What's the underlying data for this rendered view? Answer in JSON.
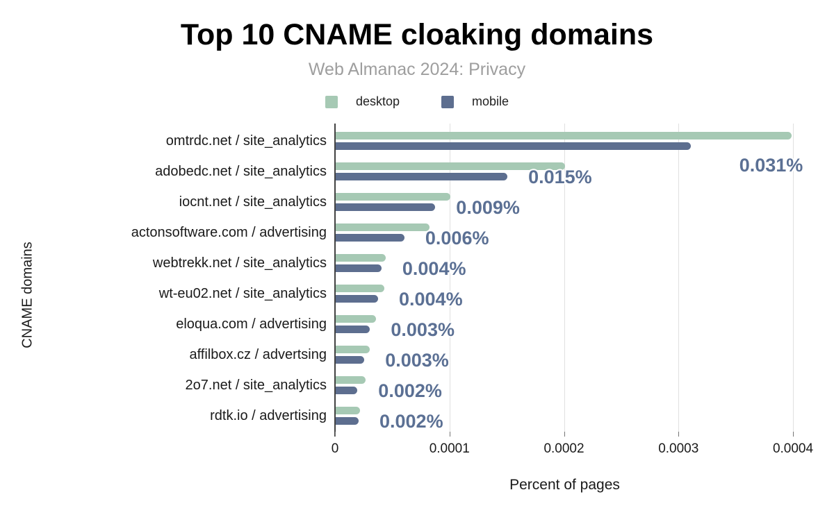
{
  "header": {
    "title": "Top 10 CNAME cloaking domains",
    "subtitle": "Web Almanac 2024: Privacy"
  },
  "legend": {
    "items": [
      {
        "label": "desktop",
        "color": "#a6c9b4"
      },
      {
        "label": "mobile",
        "color": "#5d6e8f"
      }
    ]
  },
  "chart_data": {
    "type": "bar",
    "orientation": "horizontal",
    "title": "Top 10 CNAME cloaking domains",
    "subtitle": "Web Almanac 2024: Privacy",
    "xlabel": "Percent of pages",
    "ylabel": "CNAME domains",
    "xlim": [
      0,
      0.0004
    ],
    "x_ticks": [
      "0",
      "0.0001",
      "0.0002",
      "0.0003",
      "0.0004"
    ],
    "grid": true,
    "legend_position": "top",
    "categories": [
      "omtrdc.net / site_analytics",
      "adobedc.net / site_analytics",
      "iocnt.net / site_analytics",
      "actonsoftware.com / advertising",
      "webtrekk.net / site_analytics",
      "wt-eu02.net / site_analytics",
      "eloqua.com / advertising",
      "affilbox.cz / advertsing",
      "2o7.net / site_analytics",
      "rdtk.io / advertising"
    ],
    "series": [
      {
        "name": "desktop",
        "color": "#a6c9b4",
        "values": [
          0.000398,
          0.0002,
          0.0001,
          8.2e-05,
          4.35e-05,
          4.25e-05,
          3.5e-05,
          2.95e-05,
          2.6e-05,
          2.15e-05
        ]
      },
      {
        "name": "mobile",
        "color": "#5d6e8f",
        "values": [
          0.00031,
          0.00015,
          8.7e-05,
          6e-05,
          4e-05,
          3.7e-05,
          3e-05,
          2.5e-05,
          1.9e-05,
          2e-05
        ]
      }
    ],
    "annotations": {
      "series": "mobile",
      "color": "#5b7094",
      "labels": [
        "0.031%",
        "0.015%",
        "0.009%",
        "0.006%",
        "0.004%",
        "0.004%",
        "0.003%",
        "0.003%",
        "0.002%",
        "0.002%"
      ]
    }
  }
}
